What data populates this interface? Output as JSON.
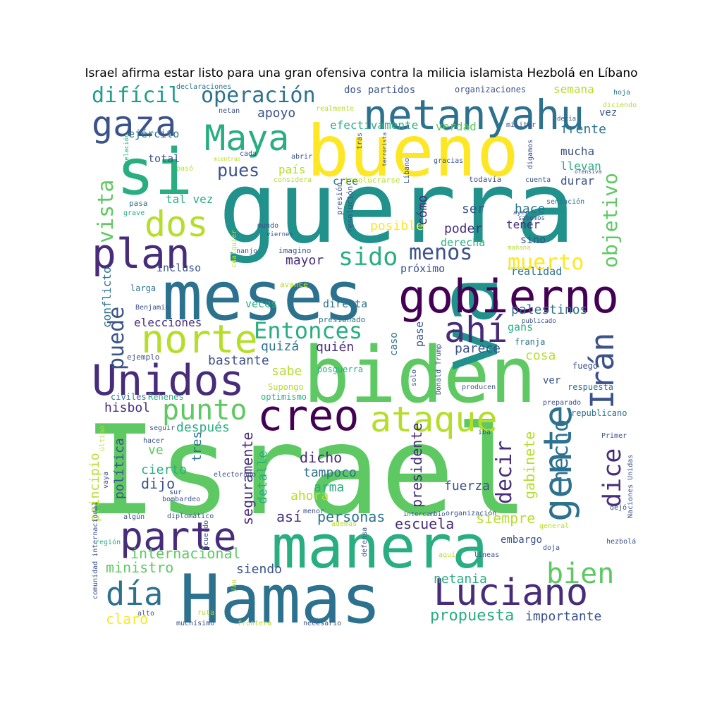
{
  "title": "Israel afirma estar listo para una gran ofensiva contra la milicia islamista Hezbolá en Líbano",
  "palette": {
    "a": "#440154",
    "b": "#3b528b",
    "c": "#21918c",
    "d": "#5ec962",
    "e": "#b5de2b",
    "f": "#fde725",
    "g": "#2c728e",
    "h": "#28ae80",
    "i": "#472c7a",
    "j": "#1f9e89"
  },
  "words": [
    {
      "text": "Israel",
      "color": "d"
    },
    {
      "text": "guerra",
      "color": "c"
    },
    {
      "text": "Hamas",
      "color": "g"
    },
    {
      "text": "biden",
      "color": "d"
    },
    {
      "text": "va",
      "color": "c"
    },
    {
      "text": "manera",
      "color": "h"
    },
    {
      "text": "meses",
      "color": "g"
    },
    {
      "text": "bueno",
      "color": "f"
    },
    {
      "text": "si",
      "color": "h"
    },
    {
      "text": "Unidos",
      "color": "i"
    },
    {
      "text": "gobierno",
      "color": "a"
    },
    {
      "text": "netanyahu",
      "color": "g"
    },
    {
      "text": "parte",
      "color": "i"
    },
    {
      "text": "Luciano",
      "color": "i"
    },
    {
      "text": "plan",
      "color": "i"
    },
    {
      "text": "gente",
      "color": "g"
    },
    {
      "text": "creo",
      "color": "a"
    },
    {
      "text": "ataque",
      "color": "e"
    },
    {
      "text": "norte",
      "color": "e"
    },
    {
      "text": "Maya",
      "color": "h"
    },
    {
      "text": "ahí",
      "color": "i"
    },
    {
      "text": "gaza",
      "color": "b"
    },
    {
      "text": "dos",
      "color": "e"
    },
    {
      "text": "día",
      "color": "g"
    },
    {
      "text": "Irán",
      "color": "b"
    },
    {
      "text": "punto",
      "color": "d"
    },
    {
      "text": "Entonces",
      "color": "h"
    },
    {
      "text": "bien",
      "color": "d"
    },
    {
      "text": "operación",
      "color": "g"
    },
    {
      "text": "difícil",
      "color": "j"
    },
    {
      "text": "objetivo",
      "color": "d"
    },
    {
      "text": "sido",
      "color": "h"
    },
    {
      "text": "menos",
      "color": "b"
    },
    {
      "text": "muerto",
      "color": "f"
    },
    {
      "text": "vista",
      "color": "d"
    },
    {
      "text": "puede",
      "color": "b"
    },
    {
      "text": "pues",
      "color": "b"
    },
    {
      "text": "dice",
      "color": "i"
    },
    {
      "text": "hecho",
      "color": "g"
    },
    {
      "text": "decir",
      "color": "i"
    },
    {
      "text": "propuesta",
      "color": "h"
    },
    {
      "text": "importante",
      "color": "b"
    },
    {
      "text": "claro",
      "color": "f"
    },
    {
      "text": "ministro",
      "color": "d"
    },
    {
      "text": "internacional",
      "color": "d"
    },
    {
      "text": "después",
      "color": "h"
    },
    {
      "text": "dicho",
      "color": "i"
    },
    {
      "text": "dijo",
      "color": "b"
    },
    {
      "text": "tampoco",
      "color": "g"
    },
    {
      "text": "arma",
      "color": "h"
    },
    {
      "text": "ahora",
      "color": "e"
    },
    {
      "text": "así",
      "color": "i"
    },
    {
      "text": "personas",
      "color": "g"
    },
    {
      "text": "escuela",
      "color": "i"
    },
    {
      "text": "siempre",
      "color": "e"
    },
    {
      "text": "presidente",
      "color": "i"
    },
    {
      "text": "gabinete",
      "color": "e"
    },
    {
      "text": "fuerza",
      "color": "b"
    },
    {
      "text": "netania",
      "color": "h"
    },
    {
      "text": "siendo",
      "color": "b"
    },
    {
      "text": "seguramente",
      "color": "i"
    },
    {
      "text": "detalle",
      "color": "h"
    },
    {
      "text": "cierto",
      "color": "h"
    },
    {
      "text": "política",
      "color": "b"
    },
    {
      "text": "tres",
      "color": "g"
    },
    {
      "text": "ve",
      "color": "d"
    },
    {
      "text": "principio",
      "color": "e"
    },
    {
      "text": "hisbol",
      "color": "i"
    },
    {
      "text": "bastante",
      "color": "b"
    },
    {
      "text": "quizá",
      "color": "g"
    },
    {
      "text": "quién",
      "color": "i"
    },
    {
      "text": "sabe",
      "color": "e"
    },
    {
      "text": "parece",
      "color": "b"
    },
    {
      "text": "cosa",
      "color": "e"
    },
    {
      "text": "palestinos",
      "color": "g"
    },
    {
      "text": "gans",
      "color": "h"
    },
    {
      "text": "elecciones",
      "color": "i"
    },
    {
      "text": "veces",
      "color": "h"
    },
    {
      "text": "directa",
      "color": "g"
    },
    {
      "text": "incluso",
      "color": "b"
    },
    {
      "text": "mayor",
      "color": "i"
    },
    {
      "text": "próximo",
      "color": "b"
    },
    {
      "text": "realidad",
      "color": "g"
    },
    {
      "text": "derecha",
      "color": "h"
    },
    {
      "text": "sino",
      "color": "b"
    },
    {
      "text": "tener",
      "color": "i"
    },
    {
      "text": "hace",
      "color": "g"
    },
    {
      "text": "poder",
      "color": "i"
    },
    {
      "text": "ser",
      "color": "b"
    },
    {
      "text": "posible",
      "color": "f"
    },
    {
      "text": "cómo",
      "color": "i"
    },
    {
      "text": "cree",
      "color": "g"
    },
    {
      "text": "tal vez",
      "color": "h"
    },
    {
      "text": "apoyo",
      "color": "b"
    },
    {
      "text": "país",
      "color": "e"
    },
    {
      "text": "total",
      "color": "b"
    },
    {
      "text": "ejército",
      "color": "g"
    },
    {
      "text": "efectivamente",
      "color": "h"
    },
    {
      "text": "verdad",
      "color": "d"
    },
    {
      "text": "frente",
      "color": "g"
    },
    {
      "text": "mucha",
      "color": "b"
    },
    {
      "text": "llevan",
      "color": "h"
    },
    {
      "text": "durar",
      "color": "b"
    },
    {
      "text": "vez",
      "color": "b"
    },
    {
      "text": "semana",
      "color": "e"
    },
    {
      "text": "dos partidos",
      "color": "b"
    },
    {
      "text": "organizaciones",
      "color": "b"
    },
    {
      "text": "conflicto",
      "color": "g"
    },
    {
      "text": "ver",
      "color": "b"
    },
    {
      "text": "respuesta",
      "color": "g"
    },
    {
      "text": "republicano",
      "color": "g"
    },
    {
      "text": "fuego",
      "color": "b"
    },
    {
      "text": "caso",
      "color": "g"
    },
    {
      "text": "pase",
      "color": "b"
    },
    {
      "text": "posguerra",
      "color": "h"
    },
    {
      "text": "franja",
      "color": "g"
    },
    {
      "text": "Supongo",
      "color": "e"
    },
    {
      "text": "optimismo",
      "color": "h"
    },
    {
      "text": "civiles",
      "color": "g"
    },
    {
      "text": "Rehenes",
      "color": "h"
    },
    {
      "text": "ejemplo",
      "color": "b"
    },
    {
      "text": "larga",
      "color": "g"
    },
    {
      "text": "Benjamín",
      "color": "b"
    },
    {
      "text": "avance",
      "color": "e"
    },
    {
      "text": "presionado",
      "color": "g"
    },
    {
      "text": "imagino",
      "color": "b"
    },
    {
      "text": "nanjo",
      "color": "b"
    },
    {
      "text": "mundo",
      "color": "b"
    },
    {
      "text": "viernes",
      "color": "b"
    },
    {
      "text": "cualquier",
      "color": "e"
    },
    {
      "text": "pasa",
      "color": "g"
    },
    {
      "text": "grave",
      "color": "h"
    },
    {
      "text": "resolución",
      "color": "b"
    },
    {
      "text": "presión",
      "color": "b"
    },
    {
      "text": "abrir",
      "color": "b"
    },
    {
      "text": "considera",
      "color": "e"
    },
    {
      "text": "involucrarse",
      "color": "e"
    },
    {
      "text": "todavía",
      "color": "b"
    },
    {
      "text": "cuenta",
      "color": "b"
    },
    {
      "text": "sensación",
      "color": "g"
    },
    {
      "text": "sabemos",
      "color": "b"
    },
    {
      "text": "ayer",
      "color": "b"
    },
    {
      "text": "mañana",
      "color": "e"
    },
    {
      "text": "varios",
      "color": "e"
    },
    {
      "text": "gracias",
      "color": "b"
    },
    {
      "text": "Líbano",
      "color": "b"
    },
    {
      "text": "digamos",
      "color": "b"
    },
    {
      "text": "militar",
      "color": "b"
    },
    {
      "text": "decía",
      "color": "b"
    },
    {
      "text": "ofensiva",
      "color": "b"
    },
    {
      "text": "diciendo",
      "color": "e"
    },
    {
      "text": "hoja",
      "color": "g"
    },
    {
      "text": "realmente",
      "color": "e"
    },
    {
      "text": "netan",
      "color": "b"
    },
    {
      "text": "declaraciones",
      "color": "g"
    },
    {
      "text": "tras",
      "color": "b"
    },
    {
      "text": "terrorista",
      "color": "b"
    },
    {
      "text": "relación",
      "color": "h"
    },
    {
      "text": "mientras",
      "color": "e"
    },
    {
      "text": "cada",
      "color": "b"
    },
    {
      "text": "pasó",
      "color": "e"
    },
    {
      "text": "Donald Trump",
      "color": "b"
    },
    {
      "text": "solo",
      "color": "b"
    },
    {
      "text": "producen",
      "color": "b"
    },
    {
      "text": "preparado",
      "color": "b"
    },
    {
      "text": "publicado",
      "color": "b"
    },
    {
      "text": "iba",
      "color": "b"
    },
    {
      "text": "Primer",
      "color": "b"
    },
    {
      "text": "dejó",
      "color": "b"
    },
    {
      "text": "Naciones Unidas",
      "color": "b"
    },
    {
      "text": "general",
      "color": "e"
    },
    {
      "text": "hezbolá",
      "color": "b"
    },
    {
      "text": "doja",
      "color": "b"
    },
    {
      "text": "embargo",
      "color": "b"
    },
    {
      "text": "líneas",
      "color": "b"
    },
    {
      "text": "aquí",
      "color": "e"
    },
    {
      "text": "defensa",
      "color": "b"
    },
    {
      "text": "además",
      "color": "e"
    },
    {
      "text": "menor",
      "color": "b"
    },
    {
      "text": "intercambio",
      "color": "b"
    },
    {
      "text": "organización",
      "color": "b"
    },
    {
      "text": "acuerdo",
      "color": "b"
    },
    {
      "text": "Van",
      "color": "e"
    },
    {
      "text": "ruta",
      "color": "e"
    },
    {
      "text": "alto",
      "color": "b"
    },
    {
      "text": "muchísimo",
      "color": "b"
    },
    {
      "text": "frontera",
      "color": "e"
    },
    {
      "text": "necesario",
      "color": "b"
    },
    {
      "text": "comunidad internacional",
      "color": "b"
    },
    {
      "text": "región",
      "color": "h"
    },
    {
      "text": "algún",
      "color": "b"
    },
    {
      "text": "diplomático",
      "color": "b"
    },
    {
      "text": "bombardeo",
      "color": "b"
    },
    {
      "text": "sur",
      "color": "b"
    },
    {
      "text": "electorado",
      "color": "b"
    },
    {
      "text": "hacer",
      "color": "b"
    },
    {
      "text": "último",
      "color": "e"
    },
    {
      "text": "seguir",
      "color": "b"
    },
    {
      "text": "vaya",
      "color": "b"
    },
    {
      "text": "Probablemente",
      "color": "e"
    }
  ]
}
